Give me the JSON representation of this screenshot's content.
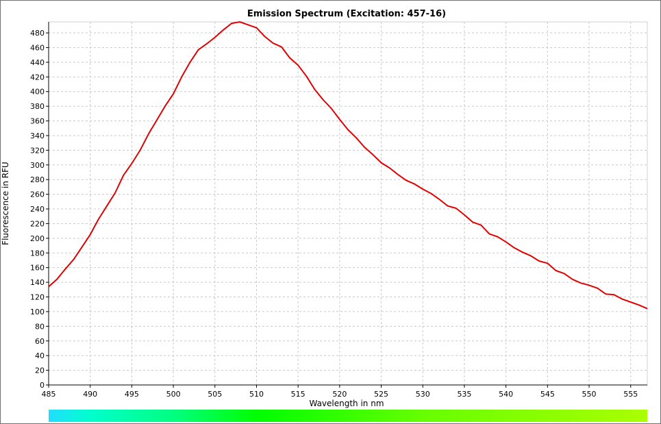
{
  "chart_data": {
    "type": "line",
    "title": "Emission Spectrum (Excitation: 457-16)",
    "xlabel": "Wavelength in nm",
    "ylabel": "Fluorescence in RFU",
    "xlim": [
      485,
      557
    ],
    "ylim": [
      0,
      495
    ],
    "xticks": [
      485,
      490,
      495,
      500,
      505,
      510,
      515,
      520,
      525,
      530,
      535,
      540,
      545,
      550,
      555
    ],
    "yticks": [
      0,
      20,
      40,
      60,
      80,
      100,
      120,
      140,
      160,
      180,
      200,
      220,
      240,
      260,
      280,
      300,
      320,
      340,
      360,
      380,
      400,
      420,
      440,
      460,
      480
    ],
    "grid": true,
    "series": [
      {
        "color": "#e00000",
        "x": [
          485,
          486,
          487,
          488,
          489,
          490,
          491,
          492,
          493,
          494,
          495,
          496,
          497,
          498,
          499,
          500,
          501,
          502,
          503,
          504,
          505,
          506,
          507,
          508,
          509,
          510,
          511,
          512,
          513,
          514,
          515,
          516,
          517,
          518,
          519,
          520,
          521,
          522,
          523,
          524,
          525,
          526,
          527,
          528,
          529,
          530,
          531,
          532,
          533,
          534,
          535,
          536,
          537,
          538,
          539,
          540,
          541,
          542,
          543,
          544,
          545,
          546,
          547,
          548,
          549,
          550,
          551,
          552,
          553,
          554,
          555,
          556,
          557
        ],
        "y": [
          134,
          144,
          158,
          171,
          188,
          205,
          226,
          244,
          262,
          286,
          302,
          320,
          342,
          361,
          380,
          397,
          420,
          440,
          457,
          465,
          474,
          484,
          493,
          495,
          491,
          487,
          475,
          466,
          461,
          446,
          436,
          421,
          403,
          389,
          377,
          362,
          348,
          337,
          324,
          314,
          303,
          296,
          287,
          279,
          274,
          267,
          261,
          253,
          244,
          241,
          232,
          222,
          218,
          206,
          202,
          195,
          187,
          181,
          176,
          169,
          166,
          156,
          152,
          144,
          139,
          136,
          132,
          124,
          123,
          117,
          113,
          109,
          104
        ]
      }
    ],
    "colorbar": {
      "stops": [
        {
          "wavelength": 485,
          "color": "#22ddff"
        },
        {
          "wavelength": 490,
          "color": "#00ffcc"
        },
        {
          "wavelength": 500,
          "color": "#00ff80"
        },
        {
          "wavelength": 510,
          "color": "#00ff00"
        },
        {
          "wavelength": 530,
          "color": "#66ff00"
        },
        {
          "wavelength": 557,
          "color": "#aaff00"
        }
      ]
    }
  }
}
